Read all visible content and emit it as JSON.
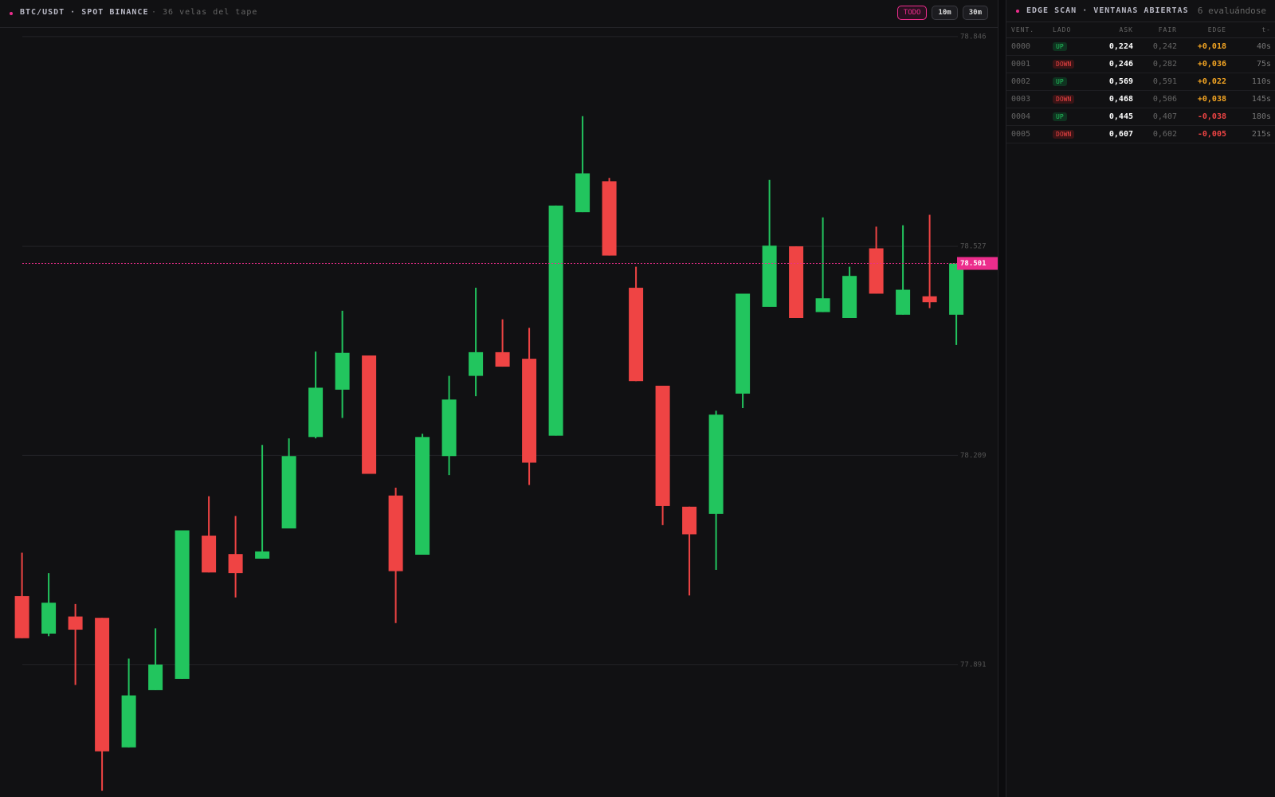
{
  "header": {
    "symbol": "BTC/USDT · SPOT BINANCE",
    "subtitle": "· 36 velas del tape",
    "buttons": [
      {
        "label": "TODO",
        "active": true
      },
      {
        "label": "10m",
        "active": false
      },
      {
        "label": "30m",
        "active": false
      }
    ]
  },
  "chart_data": {
    "type": "candlestick",
    "open": [
      77.995,
      77.938,
      77.964,
      77.962,
      77.765,
      77.852,
      77.869,
      78.087,
      78.059,
      78.052,
      78.098,
      78.237,
      78.309,
      78.361,
      78.148,
      78.058,
      78.208,
      78.33,
      78.366,
      78.356,
      78.239,
      78.579,
      78.626,
      78.464,
      78.315,
      78.131,
      78.12,
      78.303,
      78.435,
      78.527,
      78.427,
      78.418,
      78.524,
      78.423,
      78.451,
      78.423
    ],
    "high": [
      78.061,
      78.03,
      77.983,
      77.962,
      77.9,
      77.946,
      78.095,
      78.147,
      78.117,
      78.225,
      78.235,
      78.367,
      78.429,
      78.361,
      78.16,
      78.242,
      78.33,
      78.464,
      78.416,
      78.403,
      78.589,
      78.725,
      78.631,
      78.496,
      78.315,
      78.131,
      78.277,
      78.455,
      78.628,
      78.527,
      78.571,
      78.496,
      78.557,
      78.559,
      78.575,
      78.501
    ],
    "low": [
      77.931,
      77.934,
      77.86,
      77.699,
      77.765,
      77.852,
      77.869,
      78.031,
      77.993,
      78.052,
      78.098,
      78.235,
      78.266,
      78.181,
      77.954,
      78.058,
      78.179,
      78.299,
      78.344,
      78.164,
      78.239,
      78.579,
      78.513,
      78.322,
      78.103,
      77.996,
      78.035,
      78.281,
      78.435,
      78.418,
      78.427,
      78.418,
      78.455,
      78.423,
      78.433,
      78.377
    ],
    "close": [
      77.931,
      77.985,
      77.944,
      77.759,
      77.844,
      77.891,
      78.095,
      78.031,
      78.03,
      78.063,
      78.208,
      78.312,
      78.365,
      78.181,
      78.033,
      78.237,
      78.294,
      78.366,
      78.344,
      78.198,
      78.589,
      78.638,
      78.513,
      78.322,
      78.132,
      78.089,
      78.271,
      78.455,
      78.528,
      78.418,
      78.448,
      78.482,
      78.455,
      78.461,
      78.442,
      78.501
    ],
    "up_color": "#22c55e",
    "down_color": "#ef4444",
    "ylim": [
      77.69,
      78.858
    ],
    "yticks": [
      78.846,
      78.527,
      78.209,
      77.891
    ],
    "grid": true,
    "last_price": 78.501,
    "last_price_color": "#ec2d8c"
  },
  "panel": {
    "title": "EDGE SCAN · VENTANAS ABIERTAS",
    "count_label": "6 evaluándose",
    "columns": [
      "VENT.",
      "LADO",
      "ASK",
      "FAIR",
      "EDGE",
      "t-"
    ],
    "rows": [
      [
        "0000",
        "UP",
        "0,224",
        "0,242",
        "+0,018",
        "40s"
      ],
      [
        "0001",
        "DOWN",
        "0,246",
        "0,282",
        "+0,036",
        "75s"
      ],
      [
        "0002",
        "UP",
        "0,569",
        "0,591",
        "+0,022",
        "110s"
      ],
      [
        "0003",
        "DOWN",
        "0,468",
        "0,506",
        "+0,038",
        "145s"
      ],
      [
        "0004",
        "UP",
        "0,445",
        "0,407",
        "-0,038",
        "180s"
      ],
      [
        "0005",
        "DOWN",
        "0,607",
        "0,602",
        "-0,005",
        "215s"
      ]
    ]
  }
}
